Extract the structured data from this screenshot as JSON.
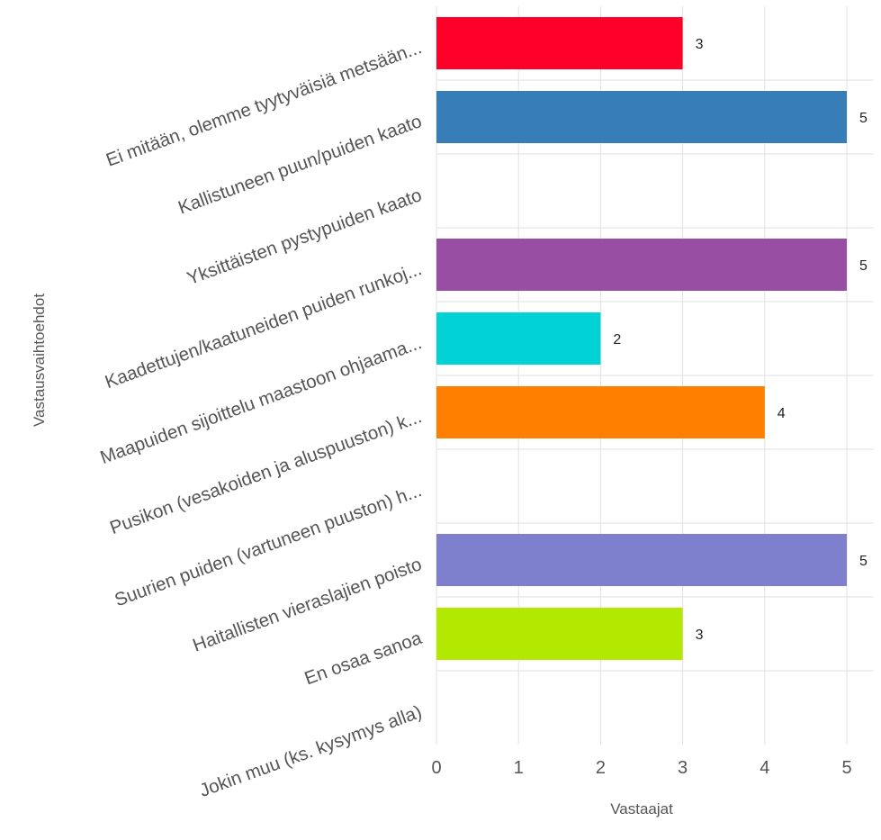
{
  "chart_data": {
    "type": "bar",
    "orientation": "horizontal",
    "categories": [
      "Ei mitään, olemme tyytyväisiä metsään...",
      "Kallistuneen puun/puiden kaato",
      "Yksittäisten pystypuiden kaato",
      "Kaadettujen/kaatuneiden puiden runkoj...",
      "Maapuiden sijoittelu maastoon ohjaama...",
      "Pusikon (vesakoiden ja aluspuuston) k...",
      "Suurien puiden (vartuneen puuston) h...",
      "Haitallisten vieraslajien poisto",
      "En osaa sanoa",
      "Jokin muu (ks. kysymys alla)"
    ],
    "values": [
      3,
      5,
      0,
      5,
      2,
      4,
      0,
      5,
      3,
      0
    ],
    "data_labels": [
      "3",
      "5",
      "",
      "5",
      "2",
      "4",
      "",
      "5",
      "3",
      ""
    ],
    "colors": [
      "#ff0029",
      "#377eb8",
      "#66a61e",
      "#984ea3",
      "#00d2d5",
      "#ff7f00",
      "#af8d00",
      "#7f80cd",
      "#b3e900",
      "#c42e60"
    ],
    "xlabel": "Vastaajat",
    "ylabel": "Vastausvaihtoehdot",
    "xlim": [
      0,
      5
    ],
    "xticks": [
      "0",
      "1",
      "2",
      "3",
      "4",
      "5"
    ],
    "grid": true,
    "legend": "none"
  }
}
